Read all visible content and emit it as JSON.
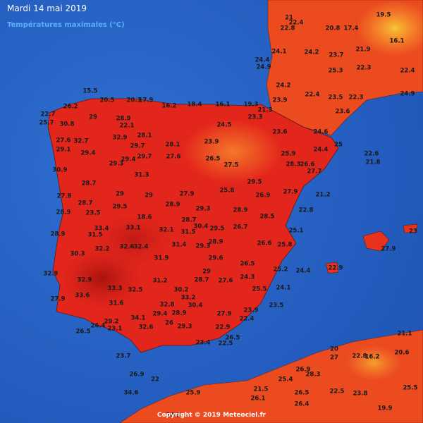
{
  "header": {
    "title": "Mardi 14 mai 2019",
    "subtitle": "Températures maximales (°C)"
  },
  "footer": "Copyright © 2019 Meteociel.fr",
  "readings": [
    22.7,
    25.7,
    26.2,
    30.8,
    15.5,
    20.5,
    20.1,
    17.9,
    16.2,
    18.4,
    16.1,
    19.3,
    21.3,
    24.4,
    24.9,
    22.8,
    22.4,
    21,
    20.8,
    17.4,
    19.5,
    16.1,
    24.1,
    24.2,
    23.7,
    21.9,
    25.3,
    22.3,
    22.4,
    24.2,
    22.4,
    23.5,
    22.3,
    23.6,
    24.5,
    23.3,
    23.9,
    23.6,
    24.6,
    24.4,
    25,
    22.6,
    21.8,
    29,
    28.9,
    22.1,
    27.6,
    29.1,
    32.7,
    29.4,
    32.9,
    28.1,
    29.7,
    29.3,
    29.4,
    29.7,
    28.1,
    27.6,
    23.9,
    26.5,
    27.5,
    25.9,
    28.3,
    26.6,
    27.7,
    30.9,
    28.7,
    31.3,
    27.8,
    28.7,
    29,
    29,
    27.9,
    25.8,
    29.5,
    26.9,
    27.9,
    21.2,
    22.8,
    28.9,
    28.5,
    28.9,
    29.3,
    28.7,
    28.9,
    23.5,
    29.5,
    18.6,
    33.4,
    33.1,
    32.1,
    31.5,
    30.4,
    29.5,
    26.7,
    25.1,
    28.9,
    31.5,
    32.2,
    32.6,
    32.4,
    31.4,
    29.3,
    28.9,
    26.6,
    25.8,
    30.3,
    31.9,
    29.6,
    26.5,
    25.2,
    24.4,
    22.9,
    32.9,
    32.9,
    33.3,
    32.5,
    31.2,
    30.2,
    33.2,
    29,
    28.7,
    27.6,
    24.3,
    25.5,
    24.1,
    33.6,
    27.9,
    31.6,
    32.8,
    30.4,
    27.9,
    23.9,
    23.5,
    34.1,
    29.4,
    28.9,
    22.4,
    26.5,
    26.4,
    29.2,
    23.1,
    32.6,
    26,
    29.3,
    22.9,
    26.5,
    23.4,
    22.5,
    21.1,
    20,
    27,
    22.8,
    16.2,
    20.6,
    26.9,
    28.3,
    25.5,
    25.4,
    26.5,
    22.5,
    23.8,
    26.4,
    19.9,
    34.6,
    25.9,
    21.5,
    26.1,
    23.7,
    26.9,
    22,
    24.5,
    27.9,
    23,
    24.9
  ]
}
